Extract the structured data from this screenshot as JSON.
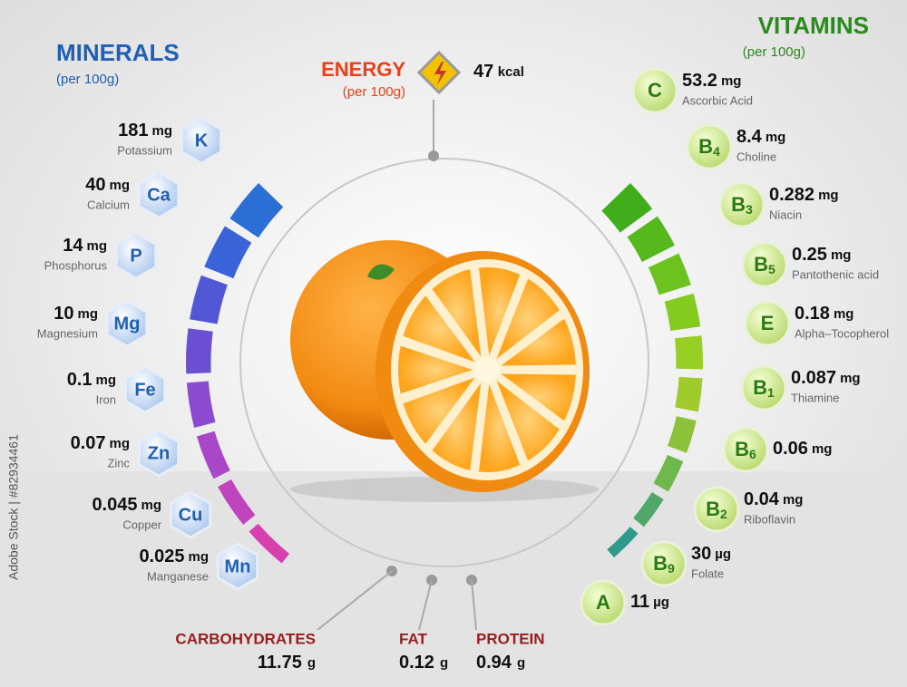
{
  "minerals": {
    "title": "MINERALS",
    "subtitle": "(per 100g)",
    "items": [
      {
        "amount": "181",
        "unit": "mg",
        "name": "Potassium",
        "symbol": "K"
      },
      {
        "amount": "40",
        "unit": "mg",
        "name": "Calcium",
        "symbol": "Ca"
      },
      {
        "amount": "14",
        "unit": "mg",
        "name": "Phosphorus",
        "symbol": "P"
      },
      {
        "amount": "10",
        "unit": "mg",
        "name": "Magnesium",
        "symbol": "Mg"
      },
      {
        "amount": "0.1",
        "unit": "mg",
        "name": "Iron",
        "symbol": "Fe"
      },
      {
        "amount": "0.07",
        "unit": "mg",
        "name": "Zinc",
        "symbol": "Zn"
      },
      {
        "amount": "0.045",
        "unit": "mg",
        "name": "Copper",
        "symbol": "Cu"
      },
      {
        "amount": "0.025",
        "unit": "mg",
        "name": "Manganese",
        "symbol": "Mn"
      }
    ]
  },
  "vitamins": {
    "title": "VITAMINS",
    "subtitle": "(per 100g)",
    "items": [
      {
        "symbol": "C",
        "amount": "53.2",
        "unit": "mg",
        "name": "Ascorbic Acid"
      },
      {
        "symbol": "B",
        "sub": "4",
        "amount": "8.4",
        "unit": "mg",
        "name": "Choline"
      },
      {
        "symbol": "B",
        "sub": "3",
        "amount": "0.282",
        "unit": "mg",
        "name": "Niacin"
      },
      {
        "symbol": "B",
        "sub": "5",
        "amount": "0.25",
        "unit": "mg",
        "name": "Pantothenic acid"
      },
      {
        "symbol": "E",
        "amount": "0.18",
        "unit": "mg",
        "name": "Alpha–Tocopherol"
      },
      {
        "symbol": "B",
        "sub": "1",
        "amount": "0.087",
        "unit": "mg",
        "name": "Thiamine"
      },
      {
        "symbol": "B",
        "sub": "6",
        "amount": "0.06",
        "unit": "mg"
      },
      {
        "symbol": "B",
        "sub": "2",
        "amount": "0.04",
        "unit": "mg",
        "name": "Riboflavin"
      },
      {
        "symbol": "B",
        "sub": "9",
        "amount": "30",
        "unit": "µg",
        "name": "Folate"
      },
      {
        "symbol": "A",
        "amount": "11",
        "unit": "µg"
      }
    ]
  },
  "energy": {
    "title": "ENERGY",
    "subtitle": "(per 100g)",
    "amount": "47",
    "unit": "kcal"
  },
  "macros": [
    {
      "name": "CARBOHYDRATES",
      "amount": "11.75",
      "unit": "g"
    },
    {
      "name": "FAT",
      "amount": "0.12",
      "unit": "g"
    },
    {
      "name": "PROTEIN",
      "amount": "0.94",
      "unit": "g"
    }
  ],
  "watermark": "Adobe Stock | #82934461"
}
